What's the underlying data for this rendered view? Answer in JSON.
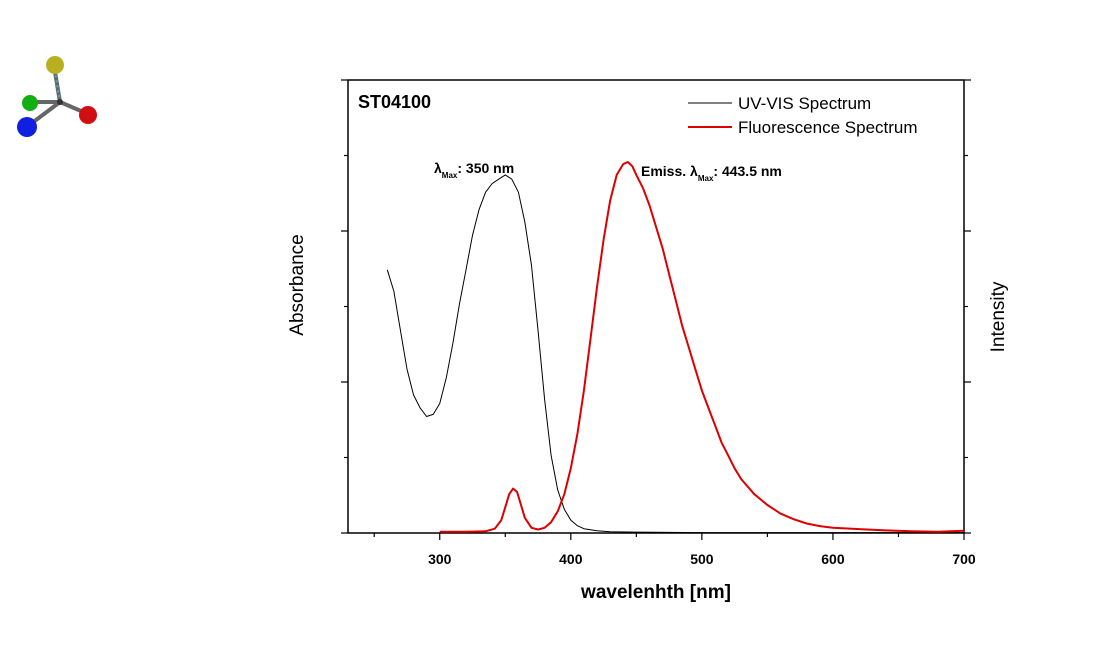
{
  "chart_data": {
    "type": "line",
    "title": "ST04100",
    "xlabel": "wavelenhth [nm]",
    "ylabel": "Absorbance",
    "ylabel_right": "Intensity",
    "xlim": [
      230,
      700
    ],
    "ylim": [
      0,
      1.05
    ],
    "x_ticks": [
      300,
      400,
      500,
      600,
      700
    ],
    "grid": false,
    "legend_position": "top-right",
    "annotations": [
      {
        "name": "lambda-max",
        "prefix": "λ",
        "sub": "Max",
        "suffix": ": 350 nm"
      },
      {
        "name": "emission-max",
        "prefix": "Emiss. λ",
        "sub": "Max",
        "suffix": ": 443.5 nm"
      }
    ],
    "series": [
      {
        "name": "UV-VIS Spectrum",
        "color": "#000000",
        "points": [
          [
            260,
            0.61
          ],
          [
            265,
            0.56
          ],
          [
            270,
            0.47
          ],
          [
            275,
            0.38
          ],
          [
            280,
            0.32
          ],
          [
            285,
            0.29
          ],
          [
            290,
            0.27
          ],
          [
            295,
            0.275
          ],
          [
            300,
            0.3
          ],
          [
            305,
            0.36
          ],
          [
            310,
            0.44
          ],
          [
            315,
            0.53
          ],
          [
            320,
            0.61
          ],
          [
            325,
            0.69
          ],
          [
            330,
            0.75
          ],
          [
            335,
            0.79
          ],
          [
            340,
            0.81
          ],
          [
            345,
            0.82
          ],
          [
            350,
            0.83
          ],
          [
            355,
            0.82
          ],
          [
            360,
            0.79
          ],
          [
            365,
            0.72
          ],
          [
            370,
            0.62
          ],
          [
            375,
            0.47
          ],
          [
            380,
            0.31
          ],
          [
            385,
            0.18
          ],
          [
            390,
            0.1
          ],
          [
            395,
            0.055
          ],
          [
            400,
            0.03
          ],
          [
            405,
            0.017
          ],
          [
            410,
            0.01
          ],
          [
            420,
            0.005
          ],
          [
            430,
            0.003
          ],
          [
            450,
            0.002
          ],
          [
            500,
            0.001
          ],
          [
            600,
            0.001
          ],
          [
            700,
            0.001
          ]
        ]
      },
      {
        "name": "Fluorescence Spectrum",
        "color": "#dd0000",
        "points": [
          [
            300,
            0.003
          ],
          [
            320,
            0.003
          ],
          [
            335,
            0.004
          ],
          [
            342,
            0.01
          ],
          [
            347,
            0.03
          ],
          [
            350,
            0.06
          ],
          [
            353,
            0.09
          ],
          [
            356,
            0.103
          ],
          [
            359,
            0.095
          ],
          [
            362,
            0.065
          ],
          [
            365,
            0.035
          ],
          [
            370,
            0.012
          ],
          [
            375,
            0.008
          ],
          [
            380,
            0.012
          ],
          [
            385,
            0.025
          ],
          [
            390,
            0.05
          ],
          [
            395,
            0.09
          ],
          [
            400,
            0.15
          ],
          [
            405,
            0.23
          ],
          [
            410,
            0.33
          ],
          [
            415,
            0.45
          ],
          [
            420,
            0.57
          ],
          [
            425,
            0.68
          ],
          [
            430,
            0.77
          ],
          [
            435,
            0.83
          ],
          [
            440,
            0.855
          ],
          [
            443.5,
            0.86
          ],
          [
            447,
            0.85
          ],
          [
            450,
            0.83
          ],
          [
            455,
            0.8
          ],
          [
            460,
            0.76
          ],
          [
            465,
            0.71
          ],
          [
            470,
            0.66
          ],
          [
            475,
            0.6
          ],
          [
            480,
            0.54
          ],
          [
            485,
            0.48
          ],
          [
            490,
            0.43
          ],
          [
            495,
            0.38
          ],
          [
            500,
            0.33
          ],
          [
            505,
            0.29
          ],
          [
            510,
            0.25
          ],
          [
            515,
            0.21
          ],
          [
            520,
            0.18
          ],
          [
            525,
            0.15
          ],
          [
            530,
            0.125
          ],
          [
            540,
            0.09
          ],
          [
            550,
            0.065
          ],
          [
            560,
            0.045
          ],
          [
            570,
            0.032
          ],
          [
            580,
            0.022
          ],
          [
            590,
            0.016
          ],
          [
            600,
            0.012
          ],
          [
            620,
            0.009
          ],
          [
            640,
            0.006
          ],
          [
            660,
            0.004
          ],
          [
            680,
            0.003
          ],
          [
            700,
            0.005
          ]
        ]
      }
    ]
  },
  "logo": {
    "icon": "molecule-icon",
    "colors": [
      "#b8b020",
      "#10b010",
      "#1020e0",
      "#d01010",
      "#6a6a6a"
    ]
  }
}
